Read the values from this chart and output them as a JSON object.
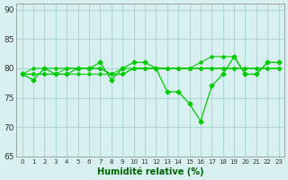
{
  "title": "Humidité relative (%)",
  "xlabel": "Humidité relative (%)",
  "bg_color": "#d8f0f0",
  "grid_color": "#b0d8d8",
  "line_color": "#00cc00",
  "marker_color": "#00cc00",
  "ylim": [
    65,
    91
  ],
  "yticks": [
    65,
    70,
    75,
    80,
    85,
    90
  ],
  "xlim": [
    -0.5,
    23.5
  ],
  "xticks": [
    0,
    1,
    2,
    3,
    4,
    5,
    6,
    7,
    8,
    9,
    10,
    11,
    12,
    13,
    14,
    15,
    16,
    17,
    18,
    19,
    20,
    21,
    22,
    23
  ],
  "series": [
    [
      79,
      78,
      80,
      79,
      79,
      80,
      80,
      81,
      78,
      80,
      81,
      81,
      80,
      76,
      76,
      74,
      71,
      77,
      79,
      82,
      79,
      79,
      81,
      81
    ],
    [
      79,
      80,
      80,
      80,
      80,
      80,
      80,
      80,
      79,
      80,
      80,
      80,
      80,
      80,
      80,
      80,
      80,
      80,
      80,
      80,
      80,
      80,
      80,
      80
    ],
    [
      79,
      79,
      79,
      79,
      79,
      79,
      79,
      79,
      79,
      79,
      80,
      80,
      80,
      80,
      80,
      80,
      80,
      80,
      80,
      80,
      80,
      80,
      80,
      80
    ],
    [
      79,
      79,
      79,
      79,
      80,
      80,
      80,
      80,
      79,
      79,
      80,
      80,
      80,
      80,
      80,
      80,
      81,
      82,
      82,
      82,
      79,
      79,
      81,
      81
    ]
  ]
}
